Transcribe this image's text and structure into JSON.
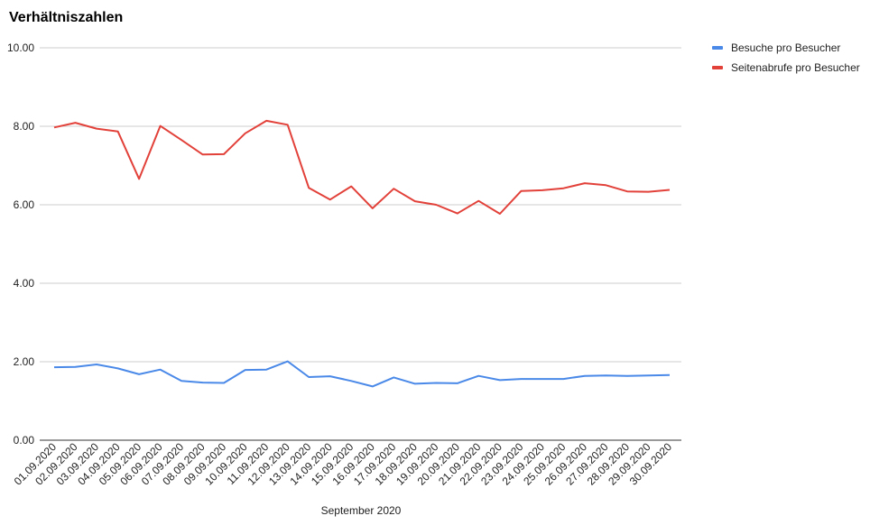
{
  "chart_data": {
    "type": "line",
    "title": "Verhältniszahlen",
    "xlabel": "September 2020",
    "ylabel": "",
    "ylim": [
      0,
      10
    ],
    "y_ticks": [
      "0.00",
      "2.00",
      "4.00",
      "6.00",
      "8.00",
      "10.00"
    ],
    "grid": true,
    "legend_position": "right",
    "categories": [
      "01.09.2020",
      "02.09.2020",
      "03.09.2020",
      "04.09.2020",
      "05.09.2020",
      "06.09.2020",
      "07.09.2020",
      "08.09.2020",
      "09.09.2020",
      "10.09.2020",
      "11.09.2020",
      "12.09.2020",
      "13.09.2020",
      "14.09.2020",
      "15.09.2020",
      "16.09.2020",
      "17.09.2020",
      "18.09.2020",
      "19.09.2020",
      "20.09.2020",
      "21.09.2020",
      "22.09.2020",
      "23.09.2020",
      "24.09.2020",
      "25.09.2020",
      "26.09.2020",
      "27.09.2020",
      "28.09.2020",
      "29.09.2020",
      "30.09.2020"
    ],
    "series": [
      {
        "name": "Besuche pro Besucher",
        "color": "#4a89e8",
        "values": [
          1.86,
          1.87,
          1.93,
          1.83,
          1.68,
          1.8,
          1.51,
          1.47,
          1.46,
          1.79,
          1.8,
          2.01,
          1.61,
          1.63,
          1.51,
          1.37,
          1.6,
          1.44,
          1.46,
          1.45,
          1.64,
          1.53,
          1.56,
          1.56,
          1.56,
          1.64,
          1.65,
          1.64,
          1.65,
          1.66
        ]
      },
      {
        "name": "Seitenabrufe pro Besucher",
        "color": "#e2413a",
        "values": [
          7.97,
          8.09,
          7.94,
          7.87,
          6.66,
          8.01,
          7.65,
          7.28,
          7.29,
          7.82,
          8.14,
          8.04,
          6.43,
          6.13,
          6.47,
          5.91,
          6.41,
          6.09,
          6.0,
          5.78,
          6.1,
          5.77,
          6.35,
          6.37,
          6.42,
          6.55,
          6.5,
          6.34,
          6.33,
          6.38
        ]
      }
    ]
  }
}
